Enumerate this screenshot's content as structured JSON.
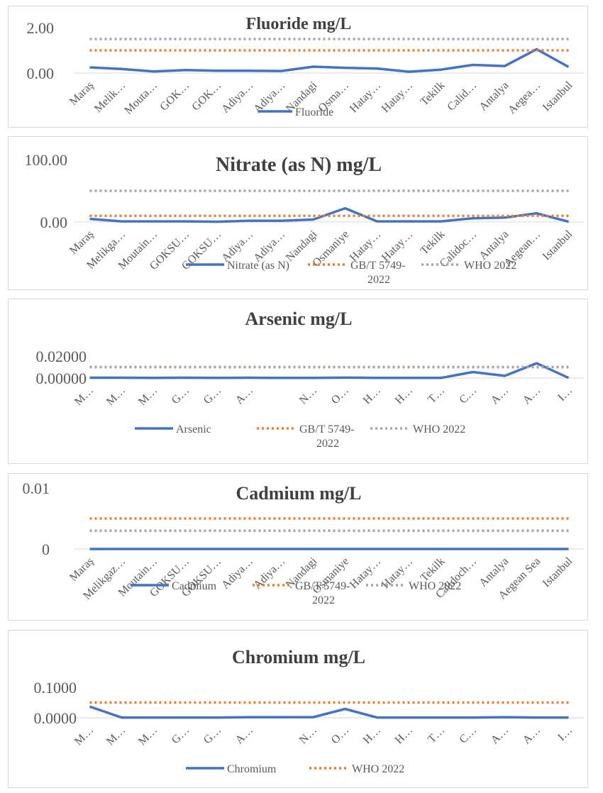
{
  "chart_data": [
    {
      "type": "line",
      "title": "Fluoride mg/L",
      "yticks": [
        "0.00",
        "2.00"
      ],
      "ylim": [
        0,
        2
      ],
      "categories": [
        "Maraş",
        "Melik…",
        "Mouta…",
        "GOK…",
        "GOK…",
        "Adiya…",
        "Adiya…",
        "Nandagi",
        "Osma…",
        "Hatay…",
        "Hatay…",
        "Tekilk",
        "Calid…",
        "Antalya",
        "Aegea…",
        "Istanbul"
      ],
      "series": [
        {
          "name": "Fluoride",
          "color": "#4472c4",
          "style": "solid",
          "values": [
            0.25,
            0.18,
            0.07,
            0.13,
            0.1,
            0.1,
            0.09,
            0.28,
            0.23,
            0.2,
            0.06,
            0.15,
            0.36,
            0.31,
            1.05,
            0.27
          ]
        },
        {
          "name": "",
          "color": "#ed7d31",
          "style": "dotted",
          "values": [
            1.0,
            1.0,
            1.0,
            1.0,
            1.0,
            1.0,
            1.0,
            1.0,
            1.0,
            1.0,
            1.0,
            1.0,
            1.0,
            1.0,
            1.0,
            1.0
          ]
        },
        {
          "name": "",
          "color": "#a5a5a5",
          "style": "dotted",
          "values": [
            1.5,
            1.5,
            1.5,
            1.5,
            1.5,
            1.5,
            1.5,
            1.5,
            1.5,
            1.5,
            1.5,
            1.5,
            1.5,
            1.5,
            1.5,
            1.5
          ]
        }
      ],
      "legend": [
        "Fluoride"
      ]
    },
    {
      "type": "line",
      "title": "Nitrate (as N) mg/L",
      "yticks": [
        "0.00",
        "100.00"
      ],
      "ylim": [
        0,
        100
      ],
      "categories": [
        "Maraş",
        "Melikga…",
        "Moutain…",
        "GOKSU…",
        "GOKSU…",
        "Adiya…",
        "Adiya…",
        "Nandagi",
        "Osmaniye",
        "Hatay…",
        "Hatay…",
        "Tekilk",
        "Calidoc…",
        "Antalya",
        "Aegean…",
        "Istanbul"
      ],
      "series": [
        {
          "name": "Nitrate (as N)",
          "color": "#4472c4",
          "style": "solid",
          "values": [
            5,
            1,
            1,
            1,
            0.5,
            2,
            2,
            4,
            22,
            1,
            1,
            1,
            6,
            7,
            14,
            0.5
          ]
        },
        {
          "name": "GB/T 5749-2022",
          "color": "#ed7d31",
          "style": "dotted",
          "values": [
            10,
            10,
            10,
            10,
            10,
            10,
            10,
            10,
            10,
            10,
            10,
            10,
            10,
            10,
            10,
            10
          ]
        },
        {
          "name": "WHO 2022",
          "color": "#a5a5a5",
          "style": "dotted",
          "values": [
            50,
            50,
            50,
            50,
            50,
            50,
            50,
            50,
            50,
            50,
            50,
            50,
            50,
            50,
            50,
            50
          ]
        }
      ],
      "legend": [
        "Nitrate (as N)",
        "GB/T 5749-",
        "2022",
        "WHO   2022"
      ]
    },
    {
      "type": "line",
      "title": "Arsenic mg/L",
      "yticks": [
        "0.00000",
        "0.02000"
      ],
      "ylim": [
        0,
        0.02
      ],
      "categories": [
        "M…",
        "M…",
        "M…",
        "G…",
        "G…",
        "A…",
        "",
        "N…",
        "O…",
        "H…",
        "H…",
        "T…",
        "C…",
        "A…",
        "A…",
        "I…"
      ],
      "series": [
        {
          "name": "Arsenic",
          "color": "#4472c4",
          "style": "solid",
          "values": [
            0.0003,
            0.0003,
            0.0001,
            0.0003,
            0.0001,
            0.0003,
            0.0001,
            0.0002,
            0.0004,
            0.0002,
            0.0001,
            0.0001,
            0.0055,
            0.002,
            0.0135,
            0.0001
          ]
        },
        {
          "name": "GB/T 5749-2022",
          "color": "#ed7d31",
          "style": "dotted",
          "values": [
            0.01,
            0.01,
            0.01,
            0.01,
            0.01,
            0.01,
            0.01,
            0.01,
            0.01,
            0.01,
            0.01,
            0.01,
            0.01,
            0.01,
            0.01,
            0.01
          ]
        },
        {
          "name": "WHO 2022",
          "color": "#a5a5a5",
          "style": "dotted",
          "values": [
            0.01,
            0.01,
            0.01,
            0.01,
            0.01,
            0.01,
            0.01,
            0.01,
            0.01,
            0.01,
            0.01,
            0.01,
            0.01,
            0.01,
            0.01,
            0.01
          ]
        }
      ],
      "legend": [
        "Arsenic",
        "GB/T 5749-",
        "2022",
        "WHO   2022"
      ]
    },
    {
      "type": "line",
      "title": "Cadmium mg/L",
      "yticks": [
        "0",
        "0.01"
      ],
      "ylim": [
        0,
        0.01
      ],
      "categories": [
        "Maraş",
        "Melikgaz…",
        "Moutain…",
        "GOKSU…",
        "GOKSU…",
        "Adiya…",
        "Adiya…",
        "Nandagi",
        "Osmaniye",
        "Hatay…",
        "Hatay…",
        "Tekilk",
        "Calidoch…",
        "Antalya",
        "Aegean Sea",
        "Istanbul"
      ],
      "series": [
        {
          "name": "Cadmium",
          "color": "#4472c4",
          "style": "solid",
          "values": [
            0,
            0,
            0,
            0,
            0,
            0,
            0,
            0,
            0,
            0,
            0,
            0,
            0,
            0,
            0,
            0
          ]
        },
        {
          "name": "GB/T 5749-2022",
          "color": "#ed7d31",
          "style": "dotted",
          "values": [
            0.005,
            0.005,
            0.005,
            0.005,
            0.005,
            0.005,
            0.005,
            0.005,
            0.005,
            0.005,
            0.005,
            0.005,
            0.005,
            0.005,
            0.005,
            0.005
          ]
        },
        {
          "name": "WHO 2022",
          "color": "#a5a5a5",
          "style": "dotted",
          "values": [
            0.003,
            0.003,
            0.003,
            0.003,
            0.003,
            0.003,
            0.003,
            0.003,
            0.003,
            0.003,
            0.003,
            0.003,
            0.003,
            0.003,
            0.003,
            0.003
          ]
        }
      ],
      "legend": [
        "Cadmium",
        "GB/T 5749-",
        "2022",
        "WHO   2022"
      ]
    },
    {
      "type": "line",
      "title": "Chromium mg/L",
      "yticks": [
        "0.0000",
        "0.1000"
      ],
      "ylim": [
        0,
        0.1
      ],
      "categories": [
        "M…",
        "M…",
        "M…",
        "G…",
        "G…",
        "A…",
        "",
        "N…",
        "O…",
        "H…",
        "H…",
        "T…",
        "C…",
        "A…",
        "A…",
        "I…"
      ],
      "series": [
        {
          "name": "Chromium",
          "color": "#4472c4",
          "style": "solid",
          "values": [
            0.037,
            0.001,
            0.001,
            0.001,
            0.001,
            0.002,
            0.002,
            0.002,
            0.029,
            0.001,
            0.001,
            0.001,
            0.001,
            0.002,
            0.001,
            0.001
          ]
        },
        {
          "name": "WHO 2022",
          "color": "#ed7d31",
          "style": "dotted",
          "values": [
            0.05,
            0.05,
            0.05,
            0.05,
            0.05,
            0.05,
            0.05,
            0.05,
            0.05,
            0.05,
            0.05,
            0.05,
            0.05,
            0.05,
            0.05,
            0.05
          ]
        }
      ],
      "legend": [
        "Chromium",
        "WHO   2022"
      ]
    }
  ]
}
